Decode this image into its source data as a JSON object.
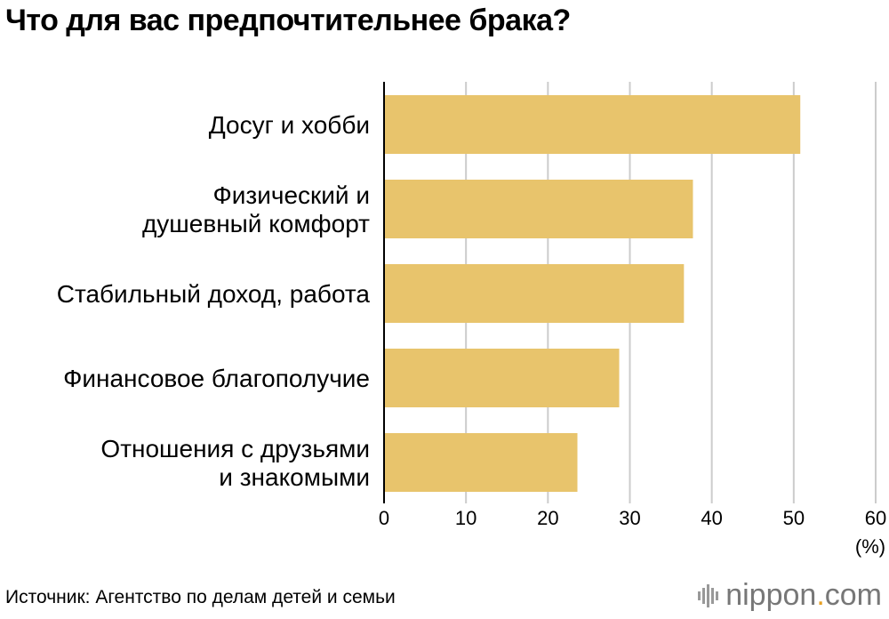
{
  "title": "Что для вас предпочтительнее брака?",
  "source": "Источник: Агентство по делам детей и семьи",
  "brand": {
    "name_part1": "nippon",
    "dot": ".",
    "name_part2": "com",
    "icon": "nippon-logo-icon"
  },
  "colors": {
    "bar": "#e8c46c",
    "grid": "#cccccc",
    "axis": "#000000",
    "accent": "#e8a023"
  },
  "chart_data": {
    "type": "bar",
    "orientation": "horizontal",
    "categories": [
      [
        "Досуг и хобби"
      ],
      [
        "Физический и",
        "душевный комфорт"
      ],
      [
        "Стабильный доход, работа"
      ],
      [
        "Финансовое благополучие"
      ],
      [
        "Отношения с друзьями",
        "и знакомыми"
      ]
    ],
    "values": [
      50.8,
      37.7,
      36.6,
      28.7,
      23.6
    ],
    "xlim": [
      0,
      60
    ],
    "xticks": [
      0,
      10,
      20,
      30,
      40,
      50,
      60
    ],
    "xlabel": "(%)",
    "grid": true
  }
}
